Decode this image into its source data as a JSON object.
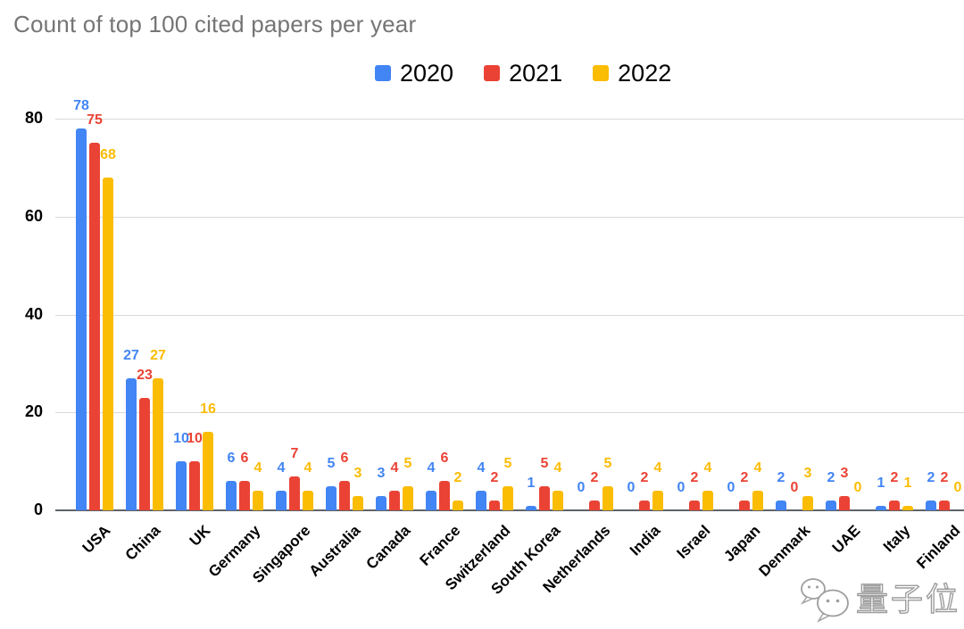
{
  "title": {
    "text": "Count of top 100 cited papers per year",
    "color": "#757575"
  },
  "watermark": {
    "icon": "wechat-bubbles-icon",
    "text": "量子位"
  },
  "colors": {
    "series_2020": "#4285F4",
    "series_2021": "#EA4335",
    "series_2022": "#FBBC04",
    "title_gray": "#757575",
    "gridline": "#d9d9d9",
    "baseline": "#5f6368",
    "axis_text": "#000000"
  },
  "chart_data": {
    "type": "bar",
    "title": "Count of top 100 cited papers per year",
    "categories": [
      "USA",
      "China",
      "UK",
      "Germany",
      "Singapore",
      "Australia",
      "Canada",
      "France",
      "Switzerland",
      "South Korea",
      "Netherlands",
      "India",
      "Israel",
      "Japan",
      "Denmark",
      "UAE",
      "Italy",
      "Finland"
    ],
    "series": [
      {
        "name": "2020",
        "color": "#4285F4",
        "values": [
          78,
          27,
          10,
          6,
          4,
          5,
          3,
          4,
          4,
          1,
          0,
          0,
          0,
          0,
          2,
          2,
          1,
          2
        ]
      },
      {
        "name": "2021",
        "color": "#EA4335",
        "values": [
          75,
          23,
          10,
          6,
          7,
          6,
          4,
          6,
          2,
          5,
          2,
          2,
          2,
          2,
          0,
          3,
          2,
          2
        ]
      },
      {
        "name": "2022",
        "color": "#FBBC04",
        "values": [
          68,
          27,
          16,
          4,
          4,
          3,
          5,
          2,
          5,
          4,
          5,
          4,
          4,
          4,
          3,
          0,
          1,
          0
        ]
      }
    ],
    "xlabel": "",
    "ylabel": "",
    "ylim": [
      0,
      80
    ],
    "yticks": [
      0,
      20,
      40,
      60,
      80
    ],
    "grid": true,
    "legend_position": "top-center",
    "data_labels": true,
    "x_label_rotation_deg": -45
  }
}
